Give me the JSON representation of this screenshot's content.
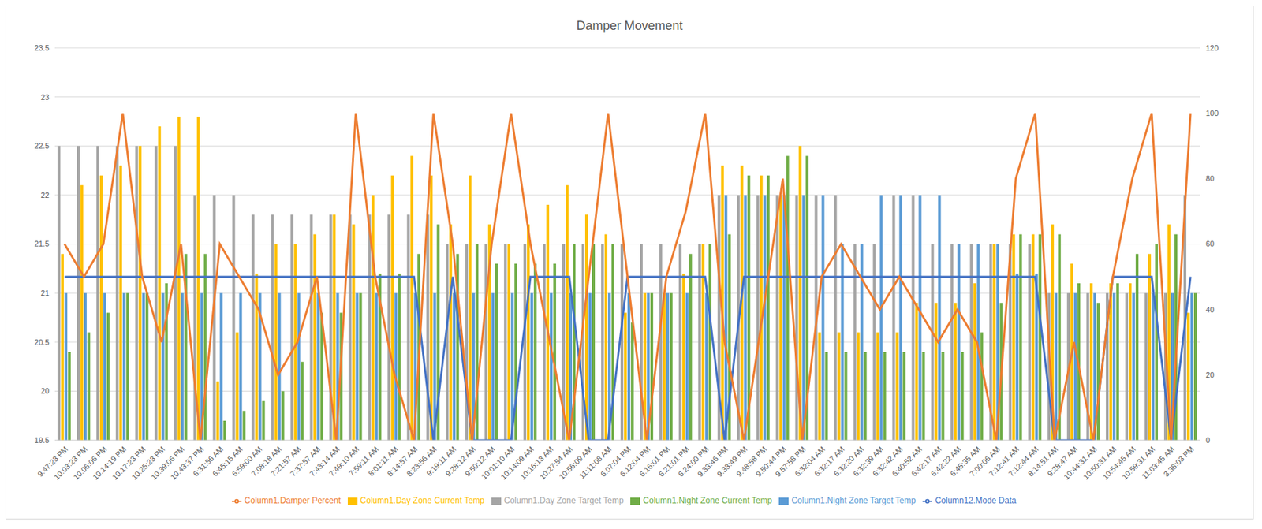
{
  "chart_data": {
    "type": "bar",
    "title": "Damper Movement",
    "categories": [
      "9:47:23 PM",
      "10:03:23 PM",
      "10:06:06 PM",
      "10:14:19 PM",
      "10:17:23 PM",
      "10:25:23 PM",
      "10:39:06 PM",
      "10:43:37 PM",
      "6:31:56 AM",
      "6:45:15 AM",
      "6:59:00 AM",
      "7:08:18 AM",
      "7:21:57 AM",
      "7:37:57 AM",
      "7:43:14 AM",
      "7:49:10 AM",
      "7:59:11 AM",
      "8:01:11 AM",
      "8:14:57 AM",
      "8:23:56 AM",
      "9:19:11 AM",
      "9:28:12 AM",
      "9:50:12 AM",
      "10:01:10 AM",
      "10:14:09 AM",
      "10:16:13 AM",
      "10:27:54 AM",
      "10:56:09 AM",
      "11:11:08 AM",
      "6:07:04 PM",
      "6:12:04 PM",
      "6:16:01 PM",
      "6:21:01 PM",
      "6:24:00 PM",
      "9:33:46 PM",
      "9:33:49 PM",
      "9:48:58 PM",
      "9:50:44 PM",
      "9:57:58 PM",
      "6:32:04 AM",
      "6:32:17 AM",
      "6:32:20 AM",
      "6:32:39 AM",
      "6:32:42 AM",
      "6:40:52 AM",
      "6:42:17 AM",
      "6:42:22 AM",
      "6:45:35 AM",
      "7:00:06 AM",
      "7:12:41 AM",
      "7:12:44 AM",
      "8:14:51 AM",
      "9:28:47 AM",
      "10:44:31 AM",
      "10:50:31 AM",
      "10:54:45 AM",
      "10:59:31 AM",
      "11:03:45 AM",
      "3:38:03 PM"
    ],
    "ylim": [
      19.5,
      23.5
    ],
    "yticks": [
      19.5,
      20,
      20.5,
      21,
      21.5,
      22,
      22.5,
      23,
      23.5
    ],
    "y2lim": [
      0,
      120
    ],
    "y2ticks": [
      0,
      20,
      40,
      60,
      80,
      100,
      120
    ],
    "grid": true,
    "legend": "bottom",
    "series": [
      {
        "name": "Column1.Day Zone Target Temp",
        "type": "bar",
        "color": "#a5a5a5",
        "values": [
          22.5,
          22.5,
          22.5,
          22.5,
          22.5,
          22.5,
          22.5,
          22.0,
          22.0,
          22.0,
          21.8,
          21.8,
          21.8,
          21.8,
          21.8,
          21.8,
          21.8,
          21.8,
          21.8,
          21.8,
          21.5,
          21.5,
          21.5,
          21.5,
          21.5,
          21.5,
          21.5,
          21.5,
          21.5,
          21.5,
          21.5,
          21.5,
          21.5,
          21.5,
          22.0,
          22.0,
          22.0,
          22.0,
          22.0,
          22.0,
          22.0,
          21.5,
          21.5,
          22.0,
          22.0,
          21.5,
          21.5,
          21.5,
          21.5,
          21.5,
          21.5,
          21.0,
          21.0,
          21.0,
          21.0,
          21.0,
          21.0,
          21.0,
          22.0
        ]
      },
      {
        "name": "Column1.Day Zone Current Temp",
        "type": "bar",
        "color": "#ffc000",
        "values": [
          21.4,
          22.1,
          22.2,
          22.3,
          22.5,
          22.7,
          22.8,
          22.8,
          20.1,
          20.6,
          21.2,
          21.5,
          21.5,
          21.6,
          21.8,
          21.7,
          22.0,
          22.2,
          22.4,
          22.2,
          21.7,
          22.2,
          21.7,
          21.5,
          21.7,
          21.9,
          22.1,
          21.8,
          21.6,
          20.8,
          21.0,
          21.0,
          21.2,
          21.5,
          22.3,
          22.3,
          22.2,
          22.0,
          22.5,
          20.6,
          20.6,
          20.6,
          20.6,
          20.6,
          20.9,
          20.9,
          20.9,
          21.1,
          21.5,
          21.6,
          21.6,
          21.7,
          21.3,
          21.1,
          21.1,
          21.1,
          21.4,
          21.7,
          20.8
        ]
      },
      {
        "name": "Column1.Night Zone Target Temp",
        "type": "bar",
        "color": "#5b9bd5",
        "values": [
          21.0,
          21.0,
          21.0,
          21.0,
          21.0,
          21.0,
          21.0,
          21.0,
          21.0,
          21.0,
          21.0,
          21.0,
          21.0,
          21.0,
          21.0,
          21.0,
          21.0,
          21.0,
          21.0,
          21.0,
          21.0,
          21.0,
          21.0,
          21.0,
          21.0,
          21.0,
          21.0,
          21.0,
          21.0,
          21.0,
          21.0,
          21.0,
          21.0,
          21.0,
          22.0,
          22.0,
          22.0,
          22.0,
          22.0,
          22.0,
          21.5,
          21.5,
          22.0,
          22.0,
          22.0,
          22.0,
          21.5,
          21.5,
          21.5,
          21.2,
          21.2,
          21.0,
          21.0,
          21.0,
          21.0,
          21.0,
          21.0,
          21.0,
          21.0
        ]
      },
      {
        "name": "Column1.Night Zone Current Temp",
        "type": "bar",
        "color": "#70ad47",
        "values": [
          20.4,
          20.6,
          20.8,
          21.0,
          21.0,
          21.1,
          21.4,
          21.4,
          19.7,
          19.8,
          19.9,
          20.0,
          20.3,
          20.8,
          20.8,
          21.0,
          21.2,
          21.2,
          21.4,
          21.7,
          21.4,
          21.5,
          21.3,
          21.3,
          21.3,
          21.3,
          21.5,
          21.5,
          21.5,
          20.7,
          21.0,
          21.0,
          21.4,
          21.5,
          21.6,
          22.2,
          22.2,
          22.4,
          22.4,
          20.4,
          20.4,
          20.4,
          20.4,
          20.4,
          20.4,
          20.4,
          20.4,
          20.6,
          20.9,
          21.6,
          21.6,
          21.6,
          21.1,
          20.9,
          21.1,
          21.4,
          21.5,
          21.6,
          21.0
        ]
      },
      {
        "name": "Column12.Mode Data",
        "type": "line",
        "axis": "y2",
        "color": "#4472c4",
        "values": [
          50,
          50,
          50,
          50,
          50,
          50,
          50,
          50,
          50,
          50,
          50,
          50,
          50,
          50,
          50,
          50,
          50,
          50,
          50,
          0,
          50,
          0,
          0,
          0,
          50,
          50,
          50,
          0,
          0,
          50,
          50,
          50,
          50,
          50,
          0,
          50,
          50,
          50,
          50,
          50,
          50,
          50,
          50,
          50,
          50,
          50,
          50,
          50,
          50,
          50,
          50,
          0,
          0,
          0,
          50,
          50,
          50,
          0,
          50
        ]
      },
      {
        "name": "Column1.Damper Percent",
        "type": "line",
        "axis": "y2",
        "color": "#ed7d31",
        "values": [
          60,
          50,
          60,
          100,
          50,
          30,
          60,
          0,
          60,
          50,
          40,
          20,
          30,
          50,
          0,
          100,
          50,
          20,
          0,
          100,
          60,
          0,
          60,
          100,
          60,
          30,
          0,
          50,
          100,
          50,
          0,
          50,
          70,
          100,
          30,
          0,
          40,
          80,
          0,
          50,
          60,
          50,
          40,
          50,
          40,
          30,
          40,
          30,
          0,
          80,
          100,
          0,
          30,
          0,
          50,
          80,
          100,
          0,
          100
        ]
      }
    ]
  }
}
